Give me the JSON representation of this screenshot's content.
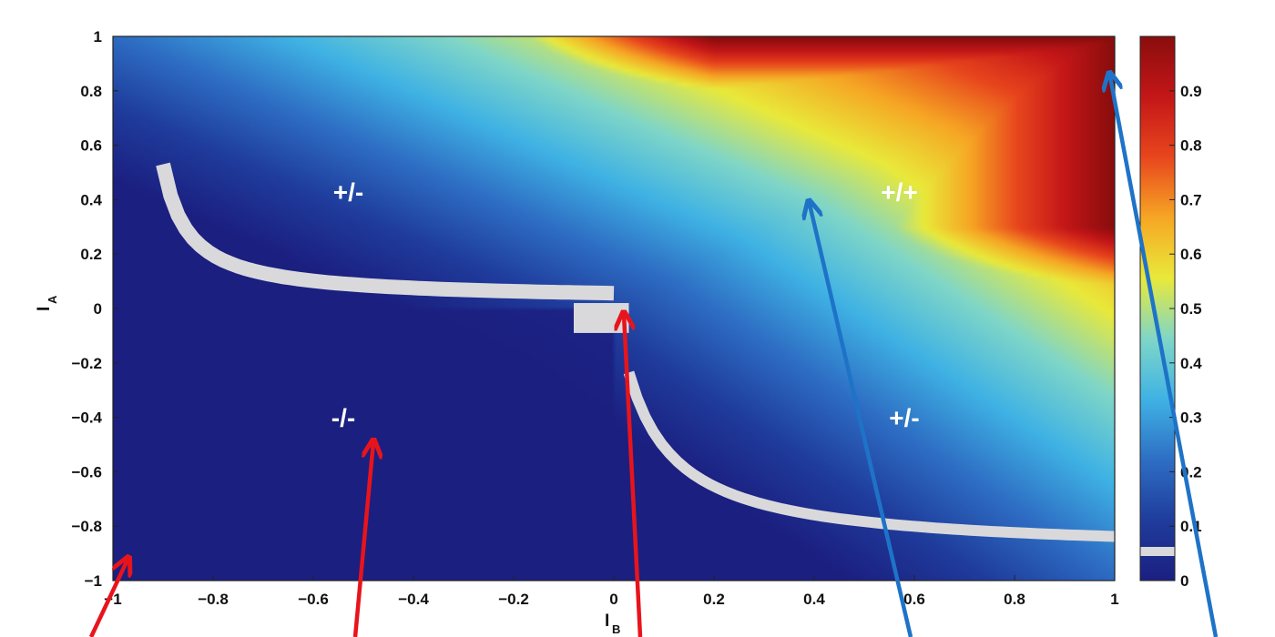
{
  "chart_data": {
    "type": "heatmap",
    "title": "",
    "xlabel": {
      "main": "I",
      "sub": "B"
    },
    "ylabel": {
      "main": "I",
      "sub": "A"
    },
    "xlim": [
      -1,
      1
    ],
    "ylim": [
      -1,
      1
    ],
    "xticks": [
      "−1",
      "−0.8",
      "−0.6",
      "−0.4",
      "−0.2",
      "0",
      "0.2",
      "0.4",
      "0.6",
      "0.8",
      "1"
    ],
    "xtick_values": [
      -1,
      -0.8,
      -0.6,
      -0.4,
      -0.2,
      0,
      0.2,
      0.4,
      0.6,
      0.8,
      1
    ],
    "yticks": [
      "1",
      "0.8",
      "0.6",
      "0.4",
      "0.2",
      "0",
      "−0.2",
      "−0.4",
      "−0.6",
      "−0.8",
      "−1"
    ],
    "ytick_values": [
      1,
      0.8,
      0.6,
      0.4,
      0.2,
      0,
      -0.2,
      -0.4,
      -0.6,
      -0.8,
      -1
    ],
    "colorbar": {
      "range": [
        0,
        1
      ],
      "ticks": [
        "0.9",
        "0.8",
        "0.7",
        "0.6",
        "0.5",
        "0.4",
        "0.3",
        "0.2",
        "0.1",
        "0"
      ],
      "tick_values": [
        0.9,
        0.8,
        0.7,
        0.6,
        0.5,
        0.4,
        0.3,
        0.2,
        0.1,
        0
      ],
      "colormap": [
        "#1b1f80",
        "#1f3c9c",
        "#2e6ec4",
        "#3fb2e4",
        "#7fd6c8",
        "#e9e93a",
        "#f6a624",
        "#e8461d",
        "#c41618",
        "#8a0d0d"
      ]
    },
    "region_labels": [
      {
        "text": "+/-",
        "x": -0.53,
        "y": 0.43
      },
      {
        "text": "+/+",
        "x": 0.57,
        "y": 0.43
      },
      {
        "text": "-/-",
        "x": -0.54,
        "y": -0.4
      },
      {
        "text": "+/-",
        "x": 0.58,
        "y": -0.4
      }
    ],
    "boundary_band_color": "#d9d9dc",
    "arrows": [
      {
        "color": "#e8141c",
        "tip": [
          -0.97,
          -0.92
        ]
      },
      {
        "color": "#e8141c",
        "tip": [
          -0.48,
          -0.49
        ]
      },
      {
        "color": "#e8141c",
        "tip": [
          0.02,
          -0.02
        ]
      },
      {
        "color": "#1e73c8",
        "tip": [
          0.39,
          0.39
        ]
      },
      {
        "color": "#1e73c8",
        "tip": [
          0.99,
          0.86
        ]
      }
    ]
  }
}
